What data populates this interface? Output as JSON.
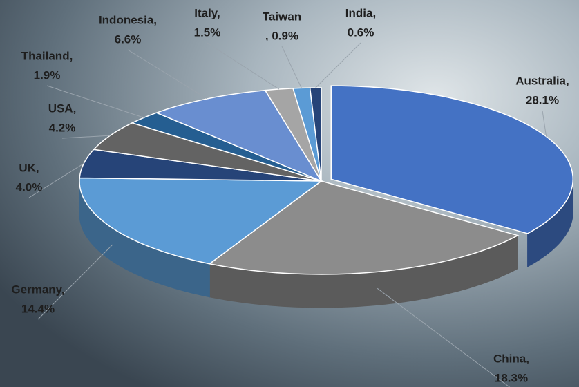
{
  "chart_data": {
    "type": "pie3d",
    "categories": [
      "Australia,",
      "China,",
      "Germany,",
      "UK,",
      "USA,",
      "Thailand,",
      "Indonesia,",
      "Italy,",
      "Taiwan",
      "India,"
    ],
    "values": [
      28.1,
      18.3,
      14.4,
      4.0,
      4.2,
      1.9,
      6.6,
      1.5,
      0.9,
      0.6
    ],
    "value_labels": [
      "28.1%",
      "18.3%",
      "14.4%",
      "4.0%",
      "4.2%",
      "1.9%",
      "6.6%",
      "1.5%",
      ", 0.9%",
      "0.6%"
    ],
    "colors": [
      "#4472c4",
      "#8c8c8c",
      "#5b9bd5",
      "#264478",
      "#636363",
      "#255e91",
      "#698ed0",
      "#a5a5a5",
      "#5b9bd5",
      "#264478"
    ]
  }
}
